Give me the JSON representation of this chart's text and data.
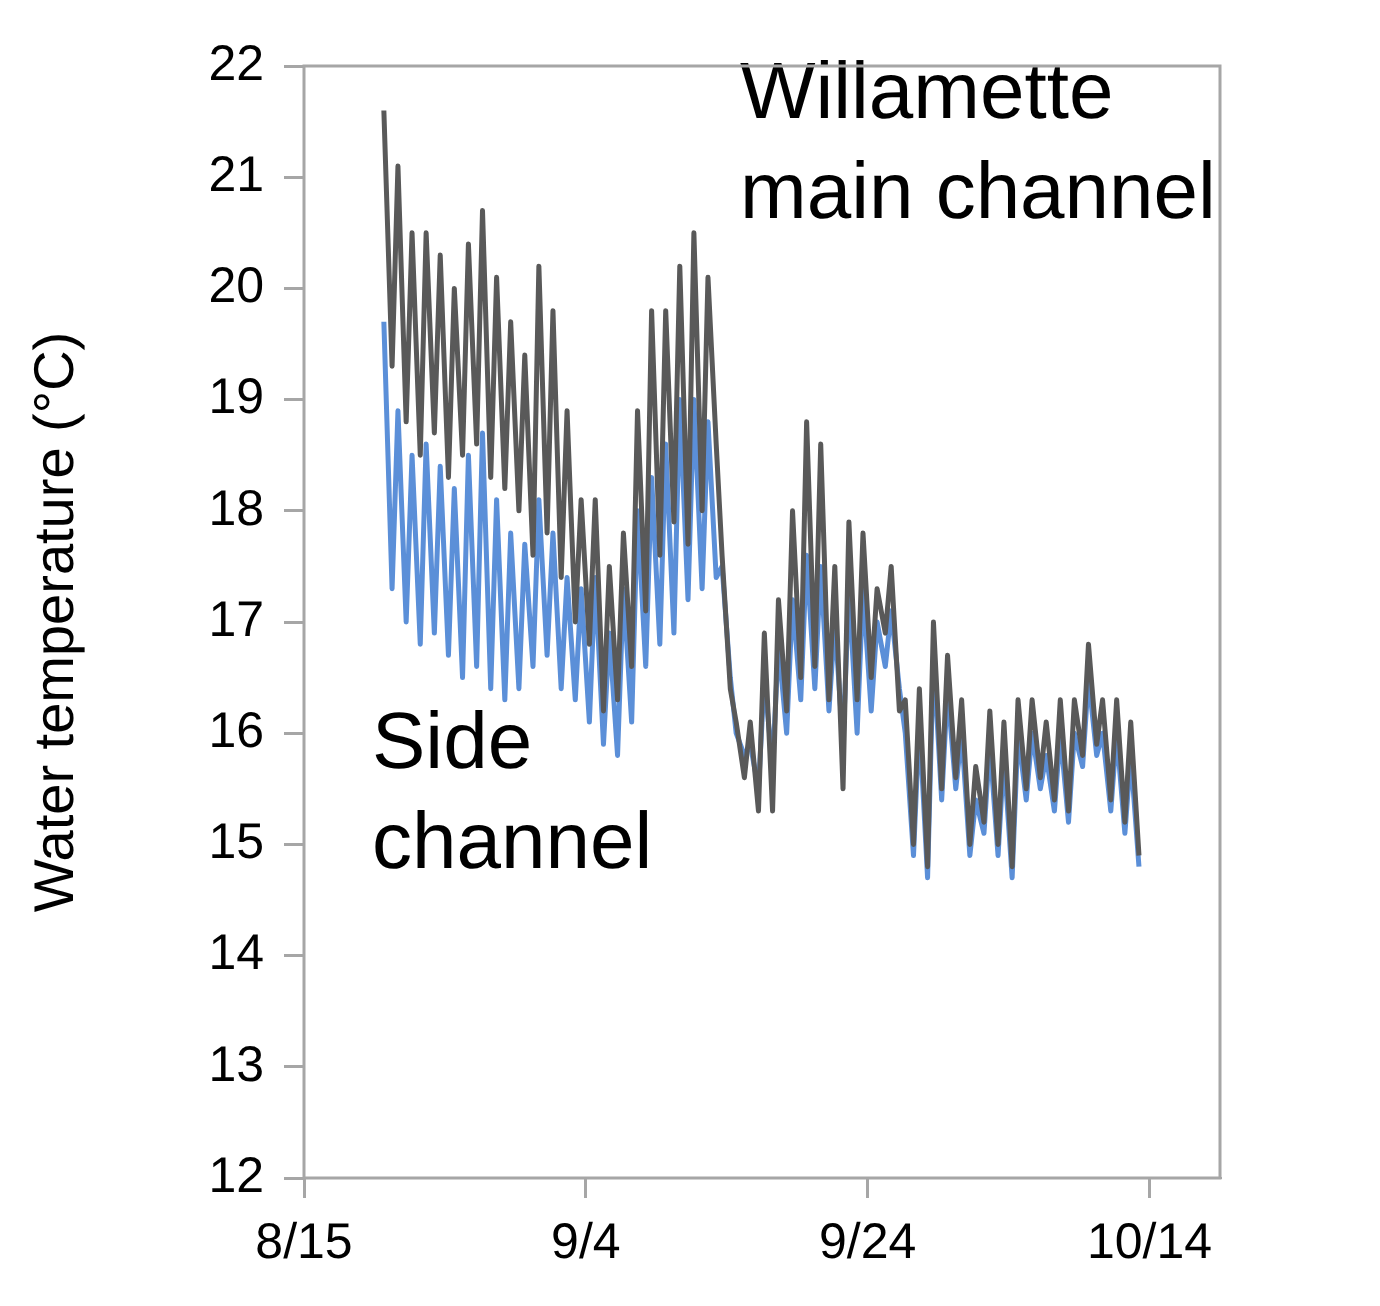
{
  "chart_data": {
    "type": "line",
    "ylabel": "Water temperature (°C)",
    "x": [
      "--08-20T16:00",
      "--08-21T06:00",
      "--08-21T16:00",
      "--08-22T06:00",
      "--08-22T16:00",
      "--08-23T06:00",
      "--08-23T16:00",
      "--08-24T06:00",
      "--08-24T16:00",
      "--08-25T06:00",
      "--08-25T16:00",
      "--08-26T06:00",
      "--08-26T16:00",
      "--08-27T06:00",
      "--08-27T16:00",
      "--08-28T06:00",
      "--08-28T16:00",
      "--08-29T06:00",
      "--08-29T16:00",
      "--08-30T06:00",
      "--08-30T16:00",
      "--08-31T06:00",
      "--08-31T16:00",
      "--09-01T06:00",
      "--09-01T16:00",
      "--09-02T06:00",
      "--09-02T16:00",
      "--09-03T06:00",
      "--09-03T16:00",
      "--09-04T06:00",
      "--09-04T16:00",
      "--09-05T06:00",
      "--09-05T16:00",
      "--09-06T06:00",
      "--09-06T16:00",
      "--09-07T06:00",
      "--09-07T16:00",
      "--09-08T06:00",
      "--09-08T16:00",
      "--09-09T06:00",
      "--09-09T16:00",
      "--09-10T06:00",
      "--09-10T16:00",
      "--09-11T06:00",
      "--09-11T16:00",
      "--09-12T06:00",
      "--09-12T16:00",
      "--09-13T06:00",
      "--09-13T16:00",
      "--09-14T06:00",
      "--09-14T16:00",
      "--09-15T06:00",
      "--09-15T16:00",
      "--09-16T06:00",
      "--09-16T16:00",
      "--09-17T06:00",
      "--09-17T16:00",
      "--09-18T06:00",
      "--09-18T16:00",
      "--09-19T06:00",
      "--09-19T16:00",
      "--09-20T06:00",
      "--09-20T16:00",
      "--09-21T06:00",
      "--09-21T16:00",
      "--09-22T06:00",
      "--09-22T16:00",
      "--09-23T06:00",
      "--09-23T16:00",
      "--09-24T06:00",
      "--09-24T16:00",
      "--09-25T06:00",
      "--09-25T16:00",
      "--09-26T06:00",
      "--09-26T16:00",
      "--09-27T06:00",
      "--09-27T16:00",
      "--09-28T06:00",
      "--09-28T16:00",
      "--09-29T06:00",
      "--09-29T16:00",
      "--09-30T06:00",
      "--09-30T16:00",
      "--10-01T06:00",
      "--10-01T16:00",
      "--10-02T06:00",
      "--10-02T16:00",
      "--10-03T06:00",
      "--10-03T16:00",
      "--10-04T06:00",
      "--10-04T16:00",
      "--10-05T06:00",
      "--10-05T16:00",
      "--10-06T06:00",
      "--10-06T16:00",
      "--10-07T06:00",
      "--10-07T16:00",
      "--10-08T06:00",
      "--10-08T16:00",
      "--10-09T06:00",
      "--10-09T16:00",
      "--10-10T06:00",
      "--10-10T16:00",
      "--10-11T06:00",
      "--10-11T16:00",
      "--10-12T06:00",
      "--10-12T16:00",
      "--10-13T06:00"
    ],
    "series": [
      {
        "name": "Side channel",
        "color": "#5b8fd8",
        "values": [
          19.7,
          17.3,
          18.9,
          17.0,
          18.5,
          16.8,
          18.6,
          16.9,
          18.4,
          16.7,
          18.2,
          16.5,
          18.5,
          16.6,
          18.7,
          16.4,
          18.1,
          16.3,
          17.8,
          16.4,
          17.7,
          16.6,
          18.1,
          16.7,
          17.8,
          16.4,
          17.4,
          16.3,
          17.3,
          16.1,
          17.4,
          15.9,
          16.9,
          15.8,
          17.3,
          16.1,
          18.0,
          16.6,
          18.3,
          16.8,
          18.6,
          16.9,
          19.0,
          17.2,
          19.0,
          17.3,
          18.8,
          17.4,
          17.5,
          16.5,
          16.0,
          15.8,
          15.9,
          15.5,
          16.5,
          15.7,
          16.8,
          16.0,
          17.2,
          16.3,
          17.6,
          16.4,
          17.5,
          16.2,
          17.0,
          15.9,
          17.3,
          16.0,
          17.3,
          16.2,
          17.0,
          16.6,
          17.1,
          16.4,
          16.0,
          14.9,
          16.1,
          14.7,
          16.7,
          15.4,
          16.4,
          15.5,
          16.0,
          14.9,
          15.4,
          15.1,
          15.9,
          14.9,
          15.8,
          14.7,
          16.0,
          15.4,
          16.0,
          15.5,
          15.8,
          15.3,
          16.0,
          15.2,
          16.0,
          15.7,
          16.5,
          15.8,
          16.0,
          15.3,
          16.0,
          15.1,
          15.8,
          14.8
        ]
      },
      {
        "name": "Willamette main channel",
        "color": "#595959",
        "values": [
          21.6,
          19.3,
          21.1,
          18.8,
          20.5,
          18.5,
          20.5,
          18.7,
          20.3,
          18.3,
          20.0,
          18.5,
          20.4,
          18.6,
          20.7,
          18.3,
          20.1,
          18.2,
          19.7,
          18.0,
          19.4,
          17.6,
          20.2,
          17.8,
          19.8,
          17.4,
          18.9,
          17.0,
          18.1,
          16.8,
          18.1,
          16.2,
          17.5,
          16.3,
          17.8,
          16.6,
          18.9,
          17.1,
          19.8,
          17.6,
          19.8,
          17.9,
          20.2,
          17.7,
          20.5,
          18.0,
          20.1,
          18.6,
          17.6,
          16.4,
          16.1,
          15.6,
          16.1,
          15.3,
          16.9,
          15.3,
          17.2,
          16.2,
          18.0,
          16.5,
          18.8,
          16.6,
          18.6,
          16.3,
          17.5,
          15.5,
          17.9,
          16.3,
          17.8,
          16.5,
          17.3,
          16.9,
          17.5,
          16.2,
          16.3,
          15.0,
          16.4,
          14.8,
          17.0,
          15.5,
          16.7,
          15.6,
          16.3,
          15.0,
          15.7,
          15.2,
          16.2,
          15.0,
          16.1,
          14.8,
          16.3,
          15.5,
          16.3,
          15.6,
          16.1,
          15.4,
          16.3,
          15.3,
          16.3,
          15.8,
          16.8,
          15.9,
          16.3,
          15.4,
          16.3,
          15.2,
          16.1,
          14.9
        ]
      }
    ],
    "xlim": [
      "--08-15",
      "--10-19"
    ],
    "xticks": [
      {
        "value": "--08-15",
        "label": "8/15"
      },
      {
        "value": "--09-04",
        "label": "9/4"
      },
      {
        "value": "--09-24",
        "label": "9/24"
      },
      {
        "value": "--10-14",
        "label": "10/14"
      }
    ],
    "ylim": [
      12,
      22
    ],
    "yticks": [
      12,
      13,
      14,
      15,
      16,
      17,
      18,
      19,
      20,
      21,
      22
    ],
    "grid": false,
    "legend": false,
    "marker": "none",
    "line_style": "solid"
  }
}
